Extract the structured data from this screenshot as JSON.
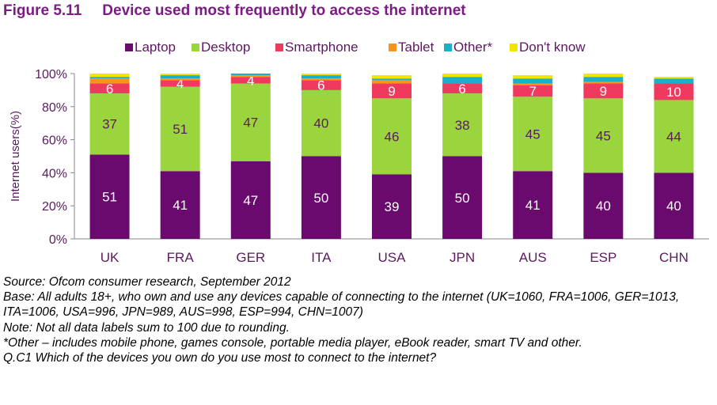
{
  "figure": {
    "number": "Figure 5.11",
    "title": "Device used most frequently to access the internet"
  },
  "chart_data": {
    "type": "bar",
    "stacked": true,
    "ylabel": "Internet users(%)",
    "ylim": [
      0,
      100
    ],
    "yticks": [
      "0%",
      "20%",
      "40%",
      "60%",
      "80%",
      "100%"
    ],
    "categories": [
      "UK",
      "FRA",
      "GER",
      "ITA",
      "USA",
      "JPN",
      "AUS",
      "ESP",
      "CHN"
    ],
    "legend_position": "top",
    "series": [
      {
        "name": "Laptop",
        "color": "#6a0a6e",
        "values": [
          51,
          41,
          47,
          50,
          39,
          50,
          41,
          40,
          40
        ],
        "labels": [
          "51",
          "41",
          "47",
          "50",
          "39",
          "50",
          "41",
          "40",
          "40"
        ],
        "label_color": "#ffffff"
      },
      {
        "name": "Desktop",
        "color": "#9bd53d",
        "values": [
          37,
          51,
          47,
          40,
          46,
          38,
          45,
          45,
          44
        ],
        "labels": [
          "37",
          "51",
          "47",
          "40",
          "46",
          "38",
          "45",
          "45",
          "44"
        ],
        "label_color": "#5b1a5e"
      },
      {
        "name": "Smartphone",
        "color": "#ef3a5d",
        "values": [
          6,
          4,
          4,
          6,
          9,
          6,
          7,
          9,
          10
        ],
        "labels": [
          "6",
          "4",
          "4",
          "6",
          "9",
          "6",
          "7",
          "9",
          "10"
        ],
        "label_color": "#ffffff"
      },
      {
        "name": "Tablet",
        "color": "#f7941d",
        "values": [
          3,
          1,
          1,
          1,
          2,
          0,
          1,
          1,
          0
        ],
        "labels": [
          "",
          "",
          "",
          "",
          "",
          "",
          "",
          "",
          ""
        ],
        "label_color": "#ffffff"
      },
      {
        "name": "Other*",
        "color": "#1ab0c7",
        "values": [
          1,
          2,
          1,
          2,
          1,
          4,
          3,
          3,
          3
        ],
        "labels": [
          "",
          "",
          "",
          "",
          "",
          "",
          "",
          "",
          ""
        ],
        "label_color": "#ffffff"
      },
      {
        "name": "Don't know",
        "color": "#f2e600",
        "values": [
          2,
          1,
          1,
          1,
          2,
          2,
          2,
          2,
          1
        ],
        "labels": [
          "",
          "",
          "",
          "",
          "",
          "",
          "",
          "",
          ""
        ],
        "label_color": "#ffffff"
      }
    ]
  },
  "notes": [
    "Source: Ofcom consumer research, September 2012",
    "Base: All adults 18+, who own and use any devices capable of connecting to the internet (UK=1060, FRA=1006, GER=1013, ITA=1006, USA=996, JPN=989, AUS=998, ESP=994, CHN=1007)",
    "Note: Not all data labels sum to 100 due to rounding.",
    "*Other – includes mobile phone, games console, portable media player, eBook reader, smart TV and other.",
    "Q.C1 Which of the devices you own do you use most to connect to the internet?"
  ]
}
